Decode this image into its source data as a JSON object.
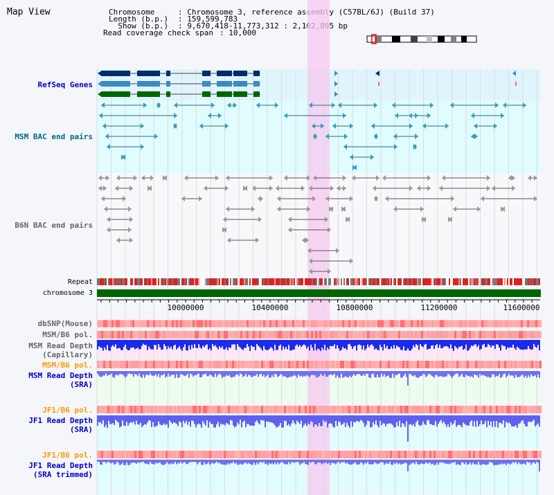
{
  "title": "Map View",
  "info": {
    "chromosome_key": "Chromosome",
    "chromosome_val": ": Chromosome 3, reference assembly (C57BL/6J) (Build 37)",
    "length_key": "Length (b.p.)",
    "length_val": ": 159,599,783",
    "show_key": "  Show (b.p.)",
    "show_val": ": 9,670,418-11,773,312 : 2,102,895 bp",
    "coverage_key": "Read coverage check span",
    "coverage_val": ": 10,000"
  },
  "tracks": {
    "refseq": "RefSeq Genes",
    "msm_bac": "MSM BAC end pairs",
    "b6n_bac": "B6N BAC end pairs",
    "repeat": "Repeat",
    "chromosome": "chromosome 3",
    "dbsnp": "dbSNP(Mouse)",
    "msm_b6_pol": "MSM/B6 pol.",
    "msm_read_depth_cap_1": "MSM Read Depth",
    "msm_read_depth_cap_2": "(Capillary)",
    "msm_b6_pol_2": "MSM/B6 pol.",
    "msm_read_depth_sra_1": "MSM Read Depth",
    "msm_read_depth_sra_2": "(SRA)",
    "jf1_b6_pol": "JF1/B6 pol.",
    "jf1_read_depth_1": "JF1 Read Depth",
    "jf1_read_depth_2": "(SRA)",
    "jf1_b6_pol_2": "JF1/B6 pol.",
    "jf1_trim_1": "JF1 Read Depth",
    "jf1_trim_2": "(SRA trimmed)"
  },
  "axis": {
    "ticks": [
      "10000000",
      "10400000",
      "10800000",
      "11200000",
      "11600000"
    ]
  },
  "colors": {
    "refseq_bg": "#e0f4fc",
    "msm_bg": "#e0fcfc",
    "label_blue": "#0000cc",
    "label_orange": "#ff9900",
    "label_teal": "#006688",
    "label_gray": "#666666",
    "highlight": "#f8d0f0",
    "chromosome_bar": "#006600"
  }
}
